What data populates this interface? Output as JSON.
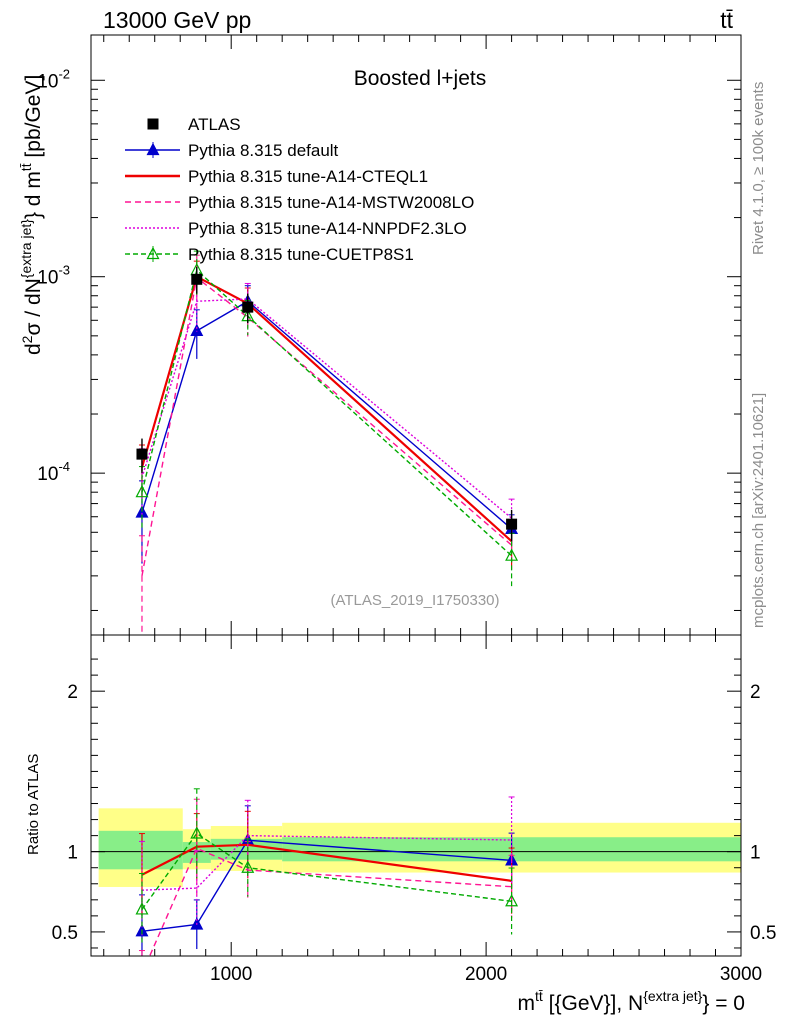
{
  "header": {
    "left": "13000 GeV pp",
    "right": "tt̄"
  },
  "side_text": {
    "rivet": "Rivet 4.1.0, ≥ 100k events",
    "mcplots": "mcplots.cern.ch [arXiv:2401.10621]"
  },
  "chart_data": {
    "type": "line",
    "title": "Boosted l+jets",
    "analysis_id": "(ATLAS_2019_I1750330)",
    "ylabel_main": "d²σ / dN^{extra jet} d m^{tt̄} [pb/GeV]",
    "ylabel_ratio": "Ratio to ATLAS",
    "xlabel": "m^{tt̄} [{GeV}], N^{extra jet} = 0",
    "x_tick_labels": [
      "1000",
      "2000",
      "3000"
    ],
    "y_tick_labels_main": [
      "10^{-4}",
      "10^{-3}",
      "10^{-2}"
    ],
    "y_tick_labels_ratio": [
      "0.5",
      "1",
      "2"
    ],
    "xlim": [
      450,
      3000
    ],
    "ylim_main": [
      1.5e-05,
      0.017
    ],
    "ylim_ratio": [
      0.35,
      2.35
    ],
    "x": [
      650,
      865,
      1065,
      2100
    ],
    "data": {
      "name": "ATLAS",
      "values": [
        0.000125,
        0.00097,
        0.0007,
        5.5e-05
      ],
      "err_lo": [
        2.5e-05,
        0.00015,
        0.00012,
        1e-05
      ],
      "err_hi": [
        2.5e-05,
        0.00015,
        0.00012,
        1e-05
      ],
      "bin_edges": [
        480,
        810,
        920,
        1200,
        3000
      ],
      "band_inner": [
        [
          0.89,
          1.13
        ],
        [
          0.93,
          1.06
        ],
        [
          0.95,
          1.08
        ],
        [
          0.94,
          1.09
        ]
      ],
      "band_outer": [
        [
          0.78,
          1.27
        ],
        [
          0.89,
          1.14
        ],
        [
          0.88,
          1.16
        ],
        [
          0.87,
          1.18
        ]
      ]
    },
    "series": [
      {
        "name": "Pythia 8.315 default",
        "color": "#0000cc",
        "dash": "",
        "marker": "triangle-filled",
        "values": [
          6.3e-05,
          0.00053,
          0.00075,
          5.2e-05
        ],
        "rel_err": [
          0.45,
          0.28,
          0.2,
          0.18
        ]
      },
      {
        "name": "Pythia 8.315 tune-A14-CTEQL1",
        "color": "#ee0000",
        "dash": "",
        "marker": "none",
        "values": [
          0.000107,
          0.001,
          0.00073,
          4.5e-05
        ],
        "rel_err": [
          0.3,
          0.2,
          0.2,
          0.25
        ]
      },
      {
        "name": "Pythia 8.315 tune-A14-MSTW2008LO",
        "color": "#ff1493",
        "dash": "6,4",
        "marker": "none",
        "values": [
          3e-05,
          0.00099,
          0.00062,
          4.3e-05
        ],
        "rel_err": [
          0.6,
          0.3,
          0.2,
          0.25
        ]
      },
      {
        "name": "Pythia 8.315 tune-A14-NNPDF2.3LO",
        "color": "#dd00dd",
        "dash": "2,2",
        "marker": "none",
        "values": [
          9.5e-05,
          0.00075,
          0.00077,
          5.9e-05
        ],
        "rel_err": [
          0.4,
          0.3,
          0.2,
          0.25
        ]
      },
      {
        "name": "Pythia 8.315 tune-CUETP8S1",
        "color": "#00aa00",
        "dash": "5,3",
        "marker": "triangle-open",
        "values": [
          8e-05,
          0.00108,
          0.00063,
          3.8e-05
        ],
        "rel_err": [
          0.35,
          0.25,
          0.2,
          0.3
        ]
      }
    ]
  }
}
